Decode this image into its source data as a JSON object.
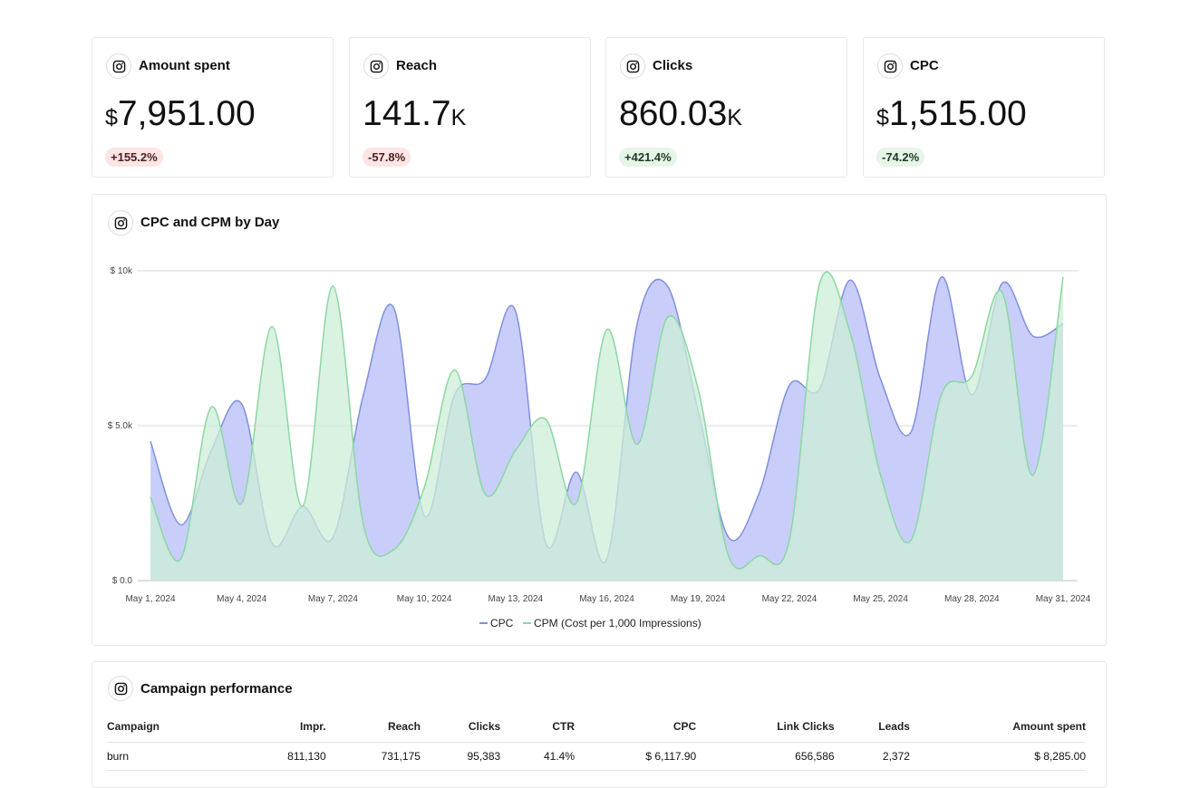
{
  "kpis": [
    {
      "title": "Amount spent",
      "prefix": "$",
      "value": "7,951.00",
      "suffix": "",
      "change": "+155.2%",
      "tone": "neg",
      "icon": "instagram-icon"
    },
    {
      "title": "Reach",
      "prefix": "",
      "value": "141.7",
      "suffix": "K",
      "change": "-57.8%",
      "tone": "neg",
      "icon": "instagram-icon"
    },
    {
      "title": "Clicks",
      "prefix": "",
      "value": "860.03",
      "suffix": "K",
      "change": "+421.4%",
      "tone": "pos",
      "icon": "instagram-icon"
    },
    {
      "title": "CPC",
      "prefix": "$",
      "value": "1,515.00",
      "suffix": "",
      "change": "-74.2%",
      "tone": "pos",
      "icon": "instagram-icon"
    }
  ],
  "chart_panel": {
    "title": "CPC and CPM by Day"
  },
  "chart_data": {
    "type": "area",
    "title": "CPC and CPM by Day",
    "x": [
      "May 1, 2024",
      "May 2, 2024",
      "May 3, 2024",
      "May 4, 2024",
      "May 5, 2024",
      "May 6, 2024",
      "May 7, 2024",
      "May 8, 2024",
      "May 9, 2024",
      "May 10, 2024",
      "May 11, 2024",
      "May 12, 2024",
      "May 13, 2024",
      "May 14, 2024",
      "May 15, 2024",
      "May 16, 2024",
      "May 17, 2024",
      "May 18, 2024",
      "May 19, 2024",
      "May 20, 2024",
      "May 21, 2024",
      "May 22, 2024",
      "May 23, 2024",
      "May 24, 2024",
      "May 25, 2024",
      "May 26, 2024",
      "May 27, 2024",
      "May 28, 2024",
      "May 29, 2024",
      "May 30, 2024",
      "May 31, 2024"
    ],
    "x_ticks": [
      "May 1, 2024",
      "May 4, 2024",
      "May 7, 2024",
      "May 10, 2024",
      "May 13, 2024",
      "May 16, 2024",
      "May 19, 2024",
      "May 22, 2024",
      "May 25, 2024",
      "May 28, 2024",
      "May 31, 2024"
    ],
    "y_ticks": [
      {
        "value": 0,
        "label": "$ 0.0"
      },
      {
        "value": 5000,
        "label": "$ 5.0k"
      },
      {
        "value": 10000,
        "label": "$ 10k"
      }
    ],
    "ylim": [
      0,
      10000
    ],
    "grid": true,
    "legend": "bottom-center",
    "series": [
      {
        "name": "CPC",
        "color": "#7f8fdf",
        "fill": "#c5cbf9",
        "values": [
          4500,
          1800,
          4200,
          5700,
          1200,
          2400,
          1400,
          6000,
          8800,
          2100,
          6000,
          6500,
          8700,
          1200,
          3500,
          700,
          8300,
          9500,
          5500,
          1400,
          2800,
          6300,
          6200,
          9700,
          6500,
          4800,
          9800,
          6000,
          9600,
          7900,
          8300
        ]
      },
      {
        "name": "CPM (Cost per 1,000 Impressions)",
        "color": "#8ad8a2",
        "fill": "#cdeed7",
        "values": [
          2700,
          700,
          5600,
          2500,
          8200,
          2400,
          9500,
          1800,
          1000,
          3000,
          6800,
          2800,
          4200,
          5200,
          2500,
          8100,
          4400,
          8500,
          6200,
          800,
          800,
          1300,
          9600,
          8000,
          3400,
          1300,
          6000,
          6600,
          9300,
          3400,
          9800
        ]
      }
    ]
  },
  "table_panel": {
    "title": "Campaign performance",
    "columns": [
      "Campaign",
      "Impr.",
      "Reach",
      "Clicks",
      "CTR",
      "CPC",
      "Link Clicks",
      "Leads",
      "Amount spent"
    ],
    "rows": [
      [
        "burn",
        "811,130",
        "731,175",
        "95,383",
        "41.4%",
        "$ 6,117.90",
        "656,586",
        "2,372",
        "$ 8,285.00"
      ]
    ]
  }
}
